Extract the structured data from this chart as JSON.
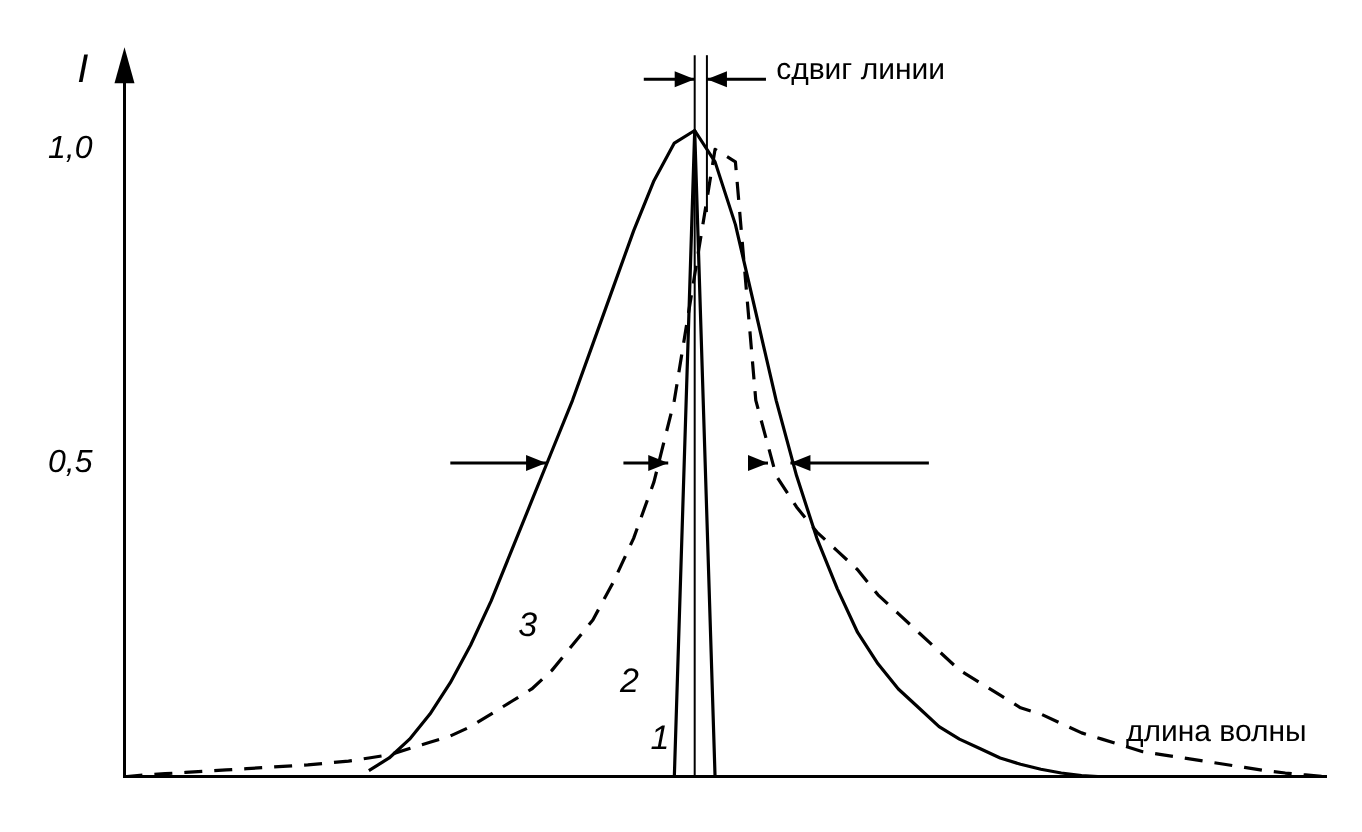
{
  "chart_data": {
    "type": "line",
    "ylabel": "I",
    "categories": [
      null,
      null,
      null,
      null,
      null,
      null,
      null,
      null,
      null,
      null,
      null,
      null,
      null,
      null,
      null,
      null,
      null,
      null,
      null,
      null,
      null,
      null,
      null,
      null,
      null,
      null,
      null,
      null,
      null,
      null,
      null,
      null,
      null,
      null,
      null,
      null,
      null,
      null,
      null,
      null,
      null,
      null,
      null,
      null,
      null,
      null,
      null,
      null,
      null,
      null,
      null,
      null,
      null,
      null,
      null,
      null,
      null,
      null,
      null,
      null
    ],
    "series": [
      {
        "name": "1",
        "color": "#000000",
        "line_style": "solid",
        "values": [
          null,
          null,
          null,
          null,
          null,
          null,
          null,
          null,
          null,
          null,
          null,
          null,
          null,
          null,
          null,
          null,
          null,
          null,
          null,
          null,
          null,
          null,
          null,
          null,
          null,
          null,
          null,
          0,
          1.03,
          0,
          null,
          null,
          null,
          null,
          null,
          null,
          null,
          null,
          null,
          null,
          null,
          null,
          null,
          null,
          null,
          null,
          null,
          null,
          null,
          null,
          null,
          null,
          null,
          null,
          null,
          null,
          null,
          null,
          null,
          null
        ]
      },
      {
        "name": "2",
        "color": "#000000",
        "line_style": "dashed",
        "values": [
          0,
          0.003,
          0.005,
          0.007,
          0.009,
          0.011,
          0.013,
          0.015,
          0.017,
          0.019,
          0.022,
          0.025,
          0.03,
          0.035,
          0.045,
          0.055,
          0.065,
          0.08,
          0.1,
          0.12,
          0.14,
          0.17,
          0.21,
          0.25,
          0.31,
          0.38,
          0.47,
          0.6,
          0.8,
          1.0,
          0.98,
          0.6,
          0.48,
          0.43,
          0.39,
          0.36,
          0.33,
          0.29,
          0.26,
          0.23,
          0.2,
          0.17,
          0.15,
          0.13,
          0.11,
          0.1,
          0.085,
          0.07,
          0.06,
          0.05,
          0.04,
          0.035,
          0.03,
          0.025,
          0.02,
          0.015,
          0.01,
          0.006,
          0.003,
          0
        ]
      },
      {
        "name": "3",
        "color": "#000000",
        "line_style": "solid",
        "values": [
          null,
          null,
          null,
          null,
          null,
          null,
          null,
          null,
          null,
          null,
          null,
          null,
          0.01,
          0.03,
          0.06,
          0.1,
          0.15,
          0.21,
          0.28,
          0.36,
          0.44,
          0.52,
          0.6,
          0.69,
          0.78,
          0.87,
          0.95,
          1.01,
          1.03,
          0.98,
          0.88,
          0.74,
          0.6,
          0.48,
          0.38,
          0.3,
          0.23,
          0.18,
          0.14,
          0.11,
          0.08,
          0.06,
          0.045,
          0.03,
          0.02,
          0.012,
          0.006,
          0.002,
          0,
          null,
          null,
          null,
          null,
          null,
          null,
          null,
          null,
          null,
          null,
          null
        ]
      }
    ],
    "ylim": [
      0,
      1.15
    ],
    "yticks": [
      {
        "value": 0.5,
        "label": "0,5"
      },
      {
        "value": 1,
        "label": "1,0"
      }
    ],
    "tick_labels": "y",
    "grid": false,
    "legend": false,
    "marker": "none",
    "annotations": [
      "сдвиг линии",
      "длина волны"
    ]
  }
}
